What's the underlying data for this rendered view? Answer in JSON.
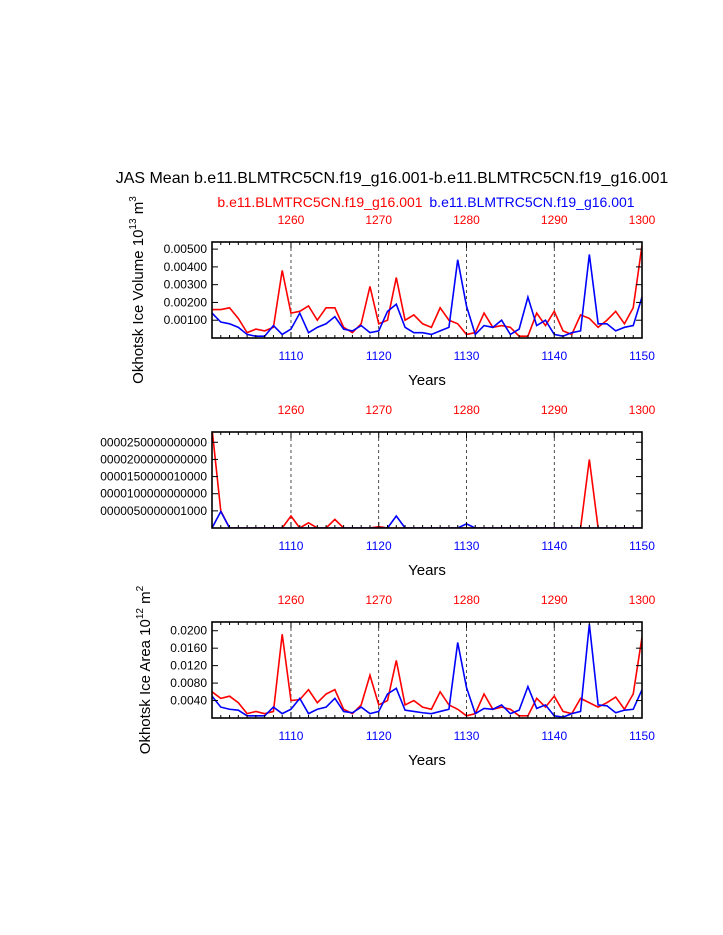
{
  "title": "JAS Mean b.e11.BLMTRC5CN.f19_g16.001-b.e11.BLMTRC5CN.f19_g16.001",
  "legend": {
    "red_label": "b.e11.BLMTRC5CN.f19_g16.001",
    "blue_label": "b.e11.BLMTRC5CN.f19_g16.001"
  },
  "colors": {
    "red": "#ff0000",
    "blue": "#0000ff",
    "axis": "#000000"
  },
  "chart_data": [
    {
      "type": "line",
      "ylabel": "Okhotsk Ice Volume 10",
      "ylabel_exp": "13",
      "ylabel_unit": " m",
      "ylabel_unit_exp": "3",
      "xlabel": "Years",
      "xlim": [
        1101,
        1150
      ],
      "top_xlim": [
        1251,
        1300
      ],
      "bottom_ticks": [
        1110,
        1120,
        1130,
        1140,
        1150
      ],
      "bottom_tick_labels": [
        "1110",
        "1120",
        "1130",
        "1140",
        "1150"
      ],
      "top_ticks": [
        1260,
        1270,
        1280,
        1290,
        1300
      ],
      "top_tick_labels": [
        "1260",
        "1270",
        "1280",
        "1290",
        "1300"
      ],
      "ylim": [
        0,
        0.0054
      ],
      "yticks": [
        0.001,
        0.002,
        0.003,
        0.004,
        0.005
      ],
      "ytick_labels": [
        "0.00100",
        "0.00200",
        "0.00300",
        "0.00400",
        "0.00500"
      ],
      "series": [
        {
          "name": "red",
          "values": [
            0.0016,
            0.0016,
            0.0017,
            0.0011,
            0.0003,
            0.0005,
            0.0004,
            0.0006,
            0.0038,
            0.0014,
            0.0015,
            0.0018,
            0.001,
            0.0017,
            0.0017,
            0.0006,
            0.0003,
            0.0008,
            0.0029,
            0.0008,
            0.001,
            0.0034,
            0.001,
            0.0013,
            0.0008,
            0.0006,
            0.0017,
            0.001,
            0.0008,
            0.0002,
            0.0003,
            0.0014,
            0.0006,
            0.0007,
            0.0006,
            0.0001,
            0.0001,
            0.0014,
            0.0007,
            0.0015,
            0.0004,
            0.0002,
            0.0013,
            0.0011,
            0.0006,
            0.001,
            0.0015,
            0.0008,
            0.0017,
            0.0052
          ]
        },
        {
          "name": "blue",
          "values": [
            0.0014,
            0.0009,
            0.0008,
            0.0006,
            0.0002,
            0.0001,
            0.0001,
            0.0007,
            0.0002,
            0.0005,
            0.0014,
            0.0003,
            0.0006,
            0.0008,
            0.0012,
            0.0005,
            0.0004,
            0.0007,
            0.0003,
            0.0004,
            0.0015,
            0.0019,
            0.0006,
            0.0003,
            0.0003,
            0.0002,
            0.0004,
            0.0006,
            0.0044,
            0.0018,
            0.0002,
            0.0007,
            0.0006,
            0.001,
            0.0002,
            0.0005,
            0.0023,
            0.0007,
            0.001,
            0.0002,
            0.0001,
            0.0003,
            0.0004,
            0.0047,
            0.0008,
            0.0008,
            0.0004,
            0.0006,
            0.0007,
            0.0023
          ]
        }
      ]
    },
    {
      "type": "line",
      "ylabel": "",
      "xlabel": "Years",
      "xlim": [
        1101,
        1150
      ],
      "top_xlim": [
        1251,
        1300
      ],
      "bottom_ticks": [
        1110,
        1120,
        1130,
        1140,
        1150
      ],
      "bottom_tick_labels": [
        "1110",
        "1120",
        "1130",
        "1140",
        "1150"
      ],
      "top_ticks": [
        1260,
        1270,
        1280,
        1290,
        1300
      ],
      "top_tick_labels": [
        "1260",
        "1270",
        "1280",
        "1290",
        "1300"
      ],
      "ylim": [
        0,
        280000000000000
      ],
      "yticks": [
        50000000001000,
        100000000000000,
        150000000010000,
        200000000000000,
        250000000000000
      ],
      "ytick_labels": [
        "0000050000001000",
        "0000100000000000",
        "0000150000010000",
        "0000200000000000",
        "0000250000000000"
      ],
      "series": [
        {
          "name": "red",
          "values": [
            290000000000000,
            50000000000000,
            0,
            0,
            0,
            0,
            0,
            0,
            0,
            35000000000000,
            0,
            15000000000000,
            0,
            0,
            25000000000000,
            0,
            0,
            0,
            0,
            4000000000000,
            0,
            0,
            0,
            0,
            0,
            0,
            0,
            0,
            0,
            0,
            0,
            0,
            0,
            0,
            0,
            0,
            0,
            0,
            0,
            0,
            0,
            0,
            0,
            200000000000000,
            0,
            0,
            0,
            0,
            0,
            0
          ]
        },
        {
          "name": "blue",
          "values": [
            0,
            48000000000000,
            0,
            0,
            0,
            0,
            0,
            0,
            0,
            0,
            0,
            0,
            0,
            0,
            0,
            0,
            0,
            0,
            0,
            0,
            0,
            35000000000000,
            0,
            0,
            0,
            0,
            0,
            0,
            0,
            12000000000000,
            0,
            0,
            0,
            0,
            0,
            0,
            0,
            0,
            0,
            0,
            0,
            0,
            0,
            0,
            0,
            0,
            0,
            0,
            0,
            0
          ]
        }
      ]
    },
    {
      "type": "line",
      "ylabel": "Okhotsk Ice Area 10",
      "ylabel_exp": "12",
      "ylabel_unit": " m",
      "ylabel_unit_exp": "2",
      "xlabel": "Years",
      "xlim": [
        1101,
        1150
      ],
      "top_xlim": [
        1251,
        1300
      ],
      "bottom_ticks": [
        1110,
        1120,
        1130,
        1140,
        1150
      ],
      "bottom_tick_labels": [
        "1110",
        "1120",
        "1130",
        "1140",
        "1150"
      ],
      "top_ticks": [
        1260,
        1270,
        1280,
        1290,
        1300
      ],
      "top_tick_labels": [
        "1260",
        "1270",
        "1280",
        "1290",
        "1300"
      ],
      "ylim": [
        0,
        0.022
      ],
      "yticks": [
        0.004,
        0.008,
        0.012,
        0.016,
        0.02
      ],
      "ytick_labels": [
        "0.0040",
        "0.0080",
        "0.0120",
        "0.0160",
        "0.0200"
      ],
      "series": [
        {
          "name": "red",
          "values": [
            0.006,
            0.0045,
            0.005,
            0.0035,
            0.001,
            0.0015,
            0.001,
            0.0015,
            0.0192,
            0.004,
            0.0042,
            0.0065,
            0.0035,
            0.0055,
            0.0065,
            0.002,
            0.001,
            0.003,
            0.0098,
            0.003,
            0.004,
            0.0132,
            0.003,
            0.004,
            0.0025,
            0.002,
            0.006,
            0.003,
            0.002,
            0.0005,
            0.001,
            0.0055,
            0.002,
            0.0025,
            0.002,
            0.0005,
            0.0005,
            0.0045,
            0.0025,
            0.005,
            0.0015,
            0.001,
            0.0045,
            0.0035,
            0.0025,
            0.0035,
            0.0048,
            0.002,
            0.0055,
            0.0185
          ]
        },
        {
          "name": "blue",
          "values": [
            0.005,
            0.0025,
            0.002,
            0.0018,
            0.0005,
            0.0005,
            0.0005,
            0.0025,
            0.001,
            0.002,
            0.0045,
            0.001,
            0.002,
            0.0025,
            0.0045,
            0.0015,
            0.0012,
            0.0025,
            0.001,
            0.0015,
            0.0055,
            0.0068,
            0.0018,
            0.0015,
            0.0012,
            0.001,
            0.0015,
            0.002,
            0.0173,
            0.007,
            0.001,
            0.0022,
            0.002,
            0.003,
            0.001,
            0.0018,
            0.0072,
            0.0022,
            0.003,
            0.0005,
            0.0002,
            0.001,
            0.0015,
            0.0215,
            0.003,
            0.0028,
            0.0012,
            0.0018,
            0.002,
            0.0065
          ]
        }
      ]
    }
  ]
}
